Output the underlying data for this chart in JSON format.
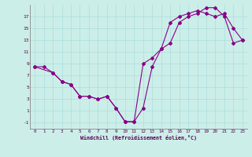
{
  "xlabel": "Windchill (Refroidissement éolien,°C)",
  "background_color": "#cceee8",
  "line_color": "#880088",
  "grid_color": "#aadddd",
  "xlim": [
    -0.5,
    23.5
  ],
  "ylim": [
    -2.0,
    19.0
  ],
  "xticks": [
    0,
    1,
    2,
    3,
    4,
    5,
    6,
    7,
    8,
    9,
    10,
    11,
    12,
    13,
    14,
    15,
    16,
    17,
    18,
    19,
    20,
    21,
    22,
    23
  ],
  "yticks": [
    -1,
    1,
    3,
    5,
    7,
    9,
    11,
    13,
    15,
    17
  ],
  "line1_x": [
    0,
    1,
    2,
    3,
    4,
    5,
    6,
    7,
    8,
    9,
    10,
    11,
    12,
    13,
    14,
    15,
    16,
    17,
    18,
    19,
    20,
    21,
    22,
    23
  ],
  "line1_y": [
    8.5,
    8.5,
    7.5,
    6.0,
    5.5,
    3.5,
    3.5,
    3.0,
    3.5,
    1.5,
    -0.8,
    -0.8,
    1.5,
    8.5,
    11.5,
    16.0,
    17.0,
    17.5,
    18.0,
    17.5,
    17.0,
    17.5,
    15.0,
    13.0
  ],
  "line2_x": [
    0,
    2,
    3,
    4,
    5,
    6,
    7,
    8,
    9,
    10,
    11,
    12,
    13,
    14,
    15,
    16,
    17,
    18,
    19,
    20,
    21,
    22,
    23
  ],
  "line2_y": [
    8.5,
    7.5,
    6.0,
    5.5,
    3.5,
    3.5,
    3.0,
    3.5,
    1.5,
    -0.8,
    -0.8,
    9.0,
    10.0,
    11.5,
    12.5,
    16.0,
    17.0,
    17.5,
    18.5,
    18.5,
    17.0,
    12.5,
    13.0
  ]
}
